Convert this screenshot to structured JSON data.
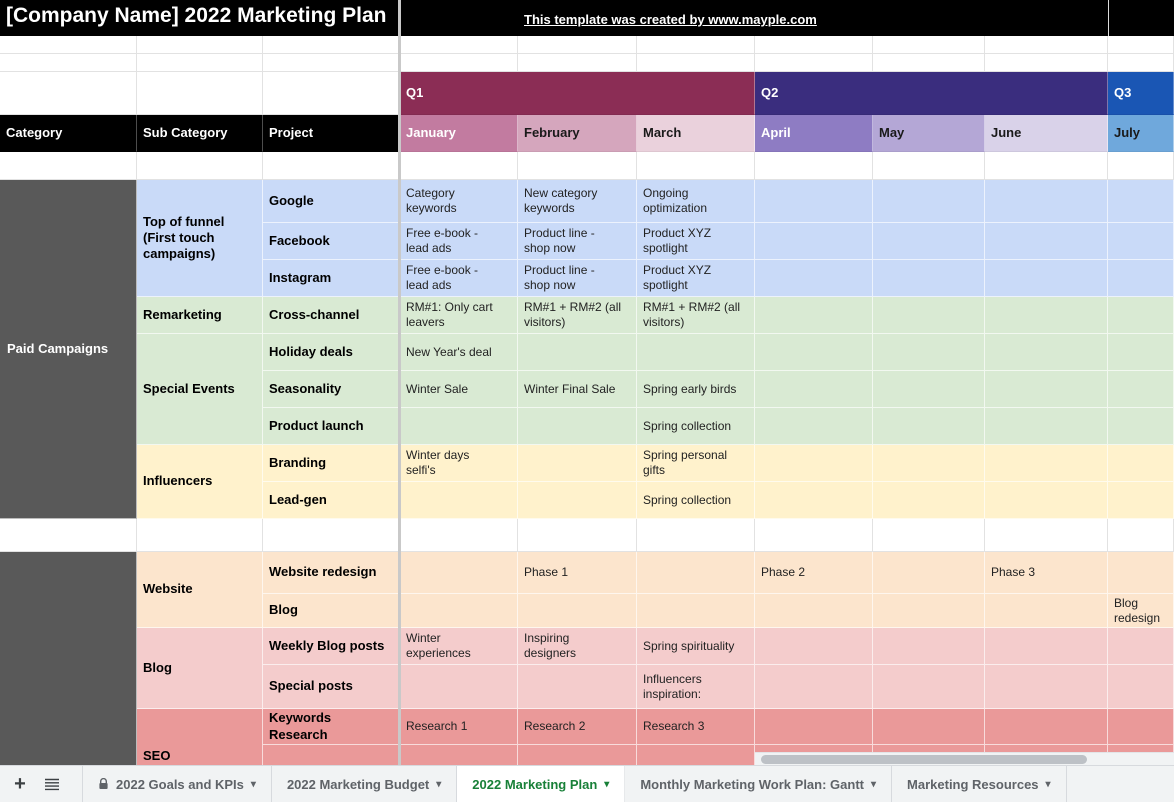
{
  "header": {
    "title": "[Company Name] 2022 Marketing Plan",
    "credit_link": "This template was created by www.mayple.com"
  },
  "table_headers": {
    "category": "Category",
    "sub_category": "Sub Category",
    "project": "Project"
  },
  "quarters": [
    {
      "label": "Q1",
      "color": "#8b2d55",
      "text_color": "#ffffff",
      "span": 3
    },
    {
      "label": "Q2",
      "color": "#3a2d7e",
      "text_color": "#ffffff",
      "span": 3
    },
    {
      "label": "Q3",
      "color": "#1a56b4",
      "text_color": "#ffffff",
      "span": 1
    }
  ],
  "months": [
    {
      "label": "January",
      "color": "#c27ba0",
      "text_color": "#ffffff"
    },
    {
      "label": "February",
      "color": "#d5a6bd",
      "text_color": "#1a1a1a"
    },
    {
      "label": "March",
      "color": "#ead1dc",
      "text_color": "#1a1a1a"
    },
    {
      "label": "April",
      "color": "#8e7cc3",
      "text_color": "#ffffff"
    },
    {
      "label": "May",
      "color": "#b4a7d6",
      "text_color": "#1a1a1a"
    },
    {
      "label": "June",
      "color": "#d9d2e9",
      "text_color": "#1a1a1a"
    },
    {
      "label": "July",
      "color": "#6fa8dc",
      "text_color": "#1a1a1a"
    }
  ],
  "sections": [
    {
      "category": "Paid Campaigns",
      "category_color": "#595959",
      "category_text_color": "#ffffff",
      "groups": [
        {
          "sub_category": "Top of funnel\n(First touch\ncampaigns)",
          "color": "#c9daf8",
          "rows": [
            {
              "project": "Google",
              "cells": [
                "Category\nkeywords",
                "New category\nkeywords",
                "Ongoing\noptimization",
                "",
                "",
                "",
                ""
              ]
            },
            {
              "project": "Facebook",
              "cells": [
                "Free e-book -\nlead ads",
                "Product line -\nshop now",
                "Product XYZ\nspotlight",
                "",
                "",
                "",
                ""
              ]
            },
            {
              "project": "Instagram",
              "cells": [
                "Free e-book -\nlead ads",
                "Product line -\nshop now",
                "Product XYZ\nspotlight",
                "",
                "",
                "",
                ""
              ]
            }
          ]
        },
        {
          "sub_category": "Remarketing",
          "color": "#d9ead3",
          "rows": [
            {
              "project": "Cross-channel",
              "cells": [
                "RM#1: Only cart\nleavers",
                "RM#1 + RM#2 (all\nvisitors)",
                "RM#1 + RM#2 (all\nvisitors)",
                "",
                "",
                "",
                ""
              ]
            }
          ]
        },
        {
          "sub_category": "Special Events",
          "color": "#d9ead3",
          "rows": [
            {
              "project": "Holiday deals",
              "cells": [
                "New Year's deal",
                "",
                "",
                "",
                "",
                "",
                ""
              ]
            },
            {
              "project": "Seasonality",
              "cells": [
                "Winter Sale",
                "Winter Final Sale",
                "Spring early birds",
                "",
                "",
                "",
                ""
              ]
            },
            {
              "project": "Product launch",
              "cells": [
                "",
                "",
                "Spring collection",
                "",
                "",
                "",
                ""
              ]
            }
          ]
        },
        {
          "sub_category": "Influencers",
          "color": "#fff2cc",
          "rows": [
            {
              "project": "Branding",
              "cells": [
                "Winter days\nselfi's",
                "",
                "Spring personal\ngifts",
                "",
                "",
                "",
                ""
              ]
            },
            {
              "project": "Lead-gen",
              "cells": [
                "",
                "",
                "Spring collection",
                "",
                "",
                "",
                ""
              ]
            }
          ]
        }
      ]
    },
    {
      "category": "",
      "category_color": "#595959",
      "category_text_color": "#ffffff",
      "groups": [
        {
          "sub_category": "Website",
          "color": "#fce5cd",
          "rows": [
            {
              "project": "Website redesign",
              "cells": [
                "",
                "Phase 1",
                "",
                "Phase 2",
                "",
                "Phase 3",
                ""
              ]
            },
            {
              "project": "Blog",
              "cells": [
                "",
                "",
                "",
                "",
                "",
                "",
                "Blog redesign"
              ]
            }
          ]
        },
        {
          "sub_category": "Blog",
          "color": "#f4cccc",
          "rows": [
            {
              "project": "Weekly Blog posts",
              "cells": [
                "Winter\nexperiences",
                "Inspiring\ndesigners",
                "Spring spirituality",
                "",
                "",
                "",
                ""
              ]
            },
            {
              "project": "Special posts",
              "cells": [
                "",
                "",
                "Influencers\ninspiration:",
                "",
                "",
                "",
                ""
              ]
            }
          ]
        },
        {
          "sub_category": "SEO",
          "color": "#ea9999",
          "rows": [
            {
              "project": "Keywords Research",
              "cells": [
                "Research 1",
                "Research 2",
                "Research 3",
                "",
                "",
                "",
                ""
              ]
            },
            {
              "project": "",
              "cells": [
                "",
                "",
                "",
                "",
                "",
                "",
                ""
              ]
            }
          ]
        }
      ]
    }
  ],
  "tabs": {
    "active_color": "#188038",
    "items": [
      {
        "label": "2022 Goals and KPIs",
        "locked": true,
        "active": false
      },
      {
        "label": "2022 Marketing Budget",
        "locked": false,
        "active": false
      },
      {
        "label": "2022 Marketing Plan",
        "locked": false,
        "active": true
      },
      {
        "label": "Monthly Marketing Work Plan: Gantt",
        "locked": false,
        "active": false
      },
      {
        "label": "Marketing Resources",
        "locked": false,
        "active": false
      }
    ]
  }
}
